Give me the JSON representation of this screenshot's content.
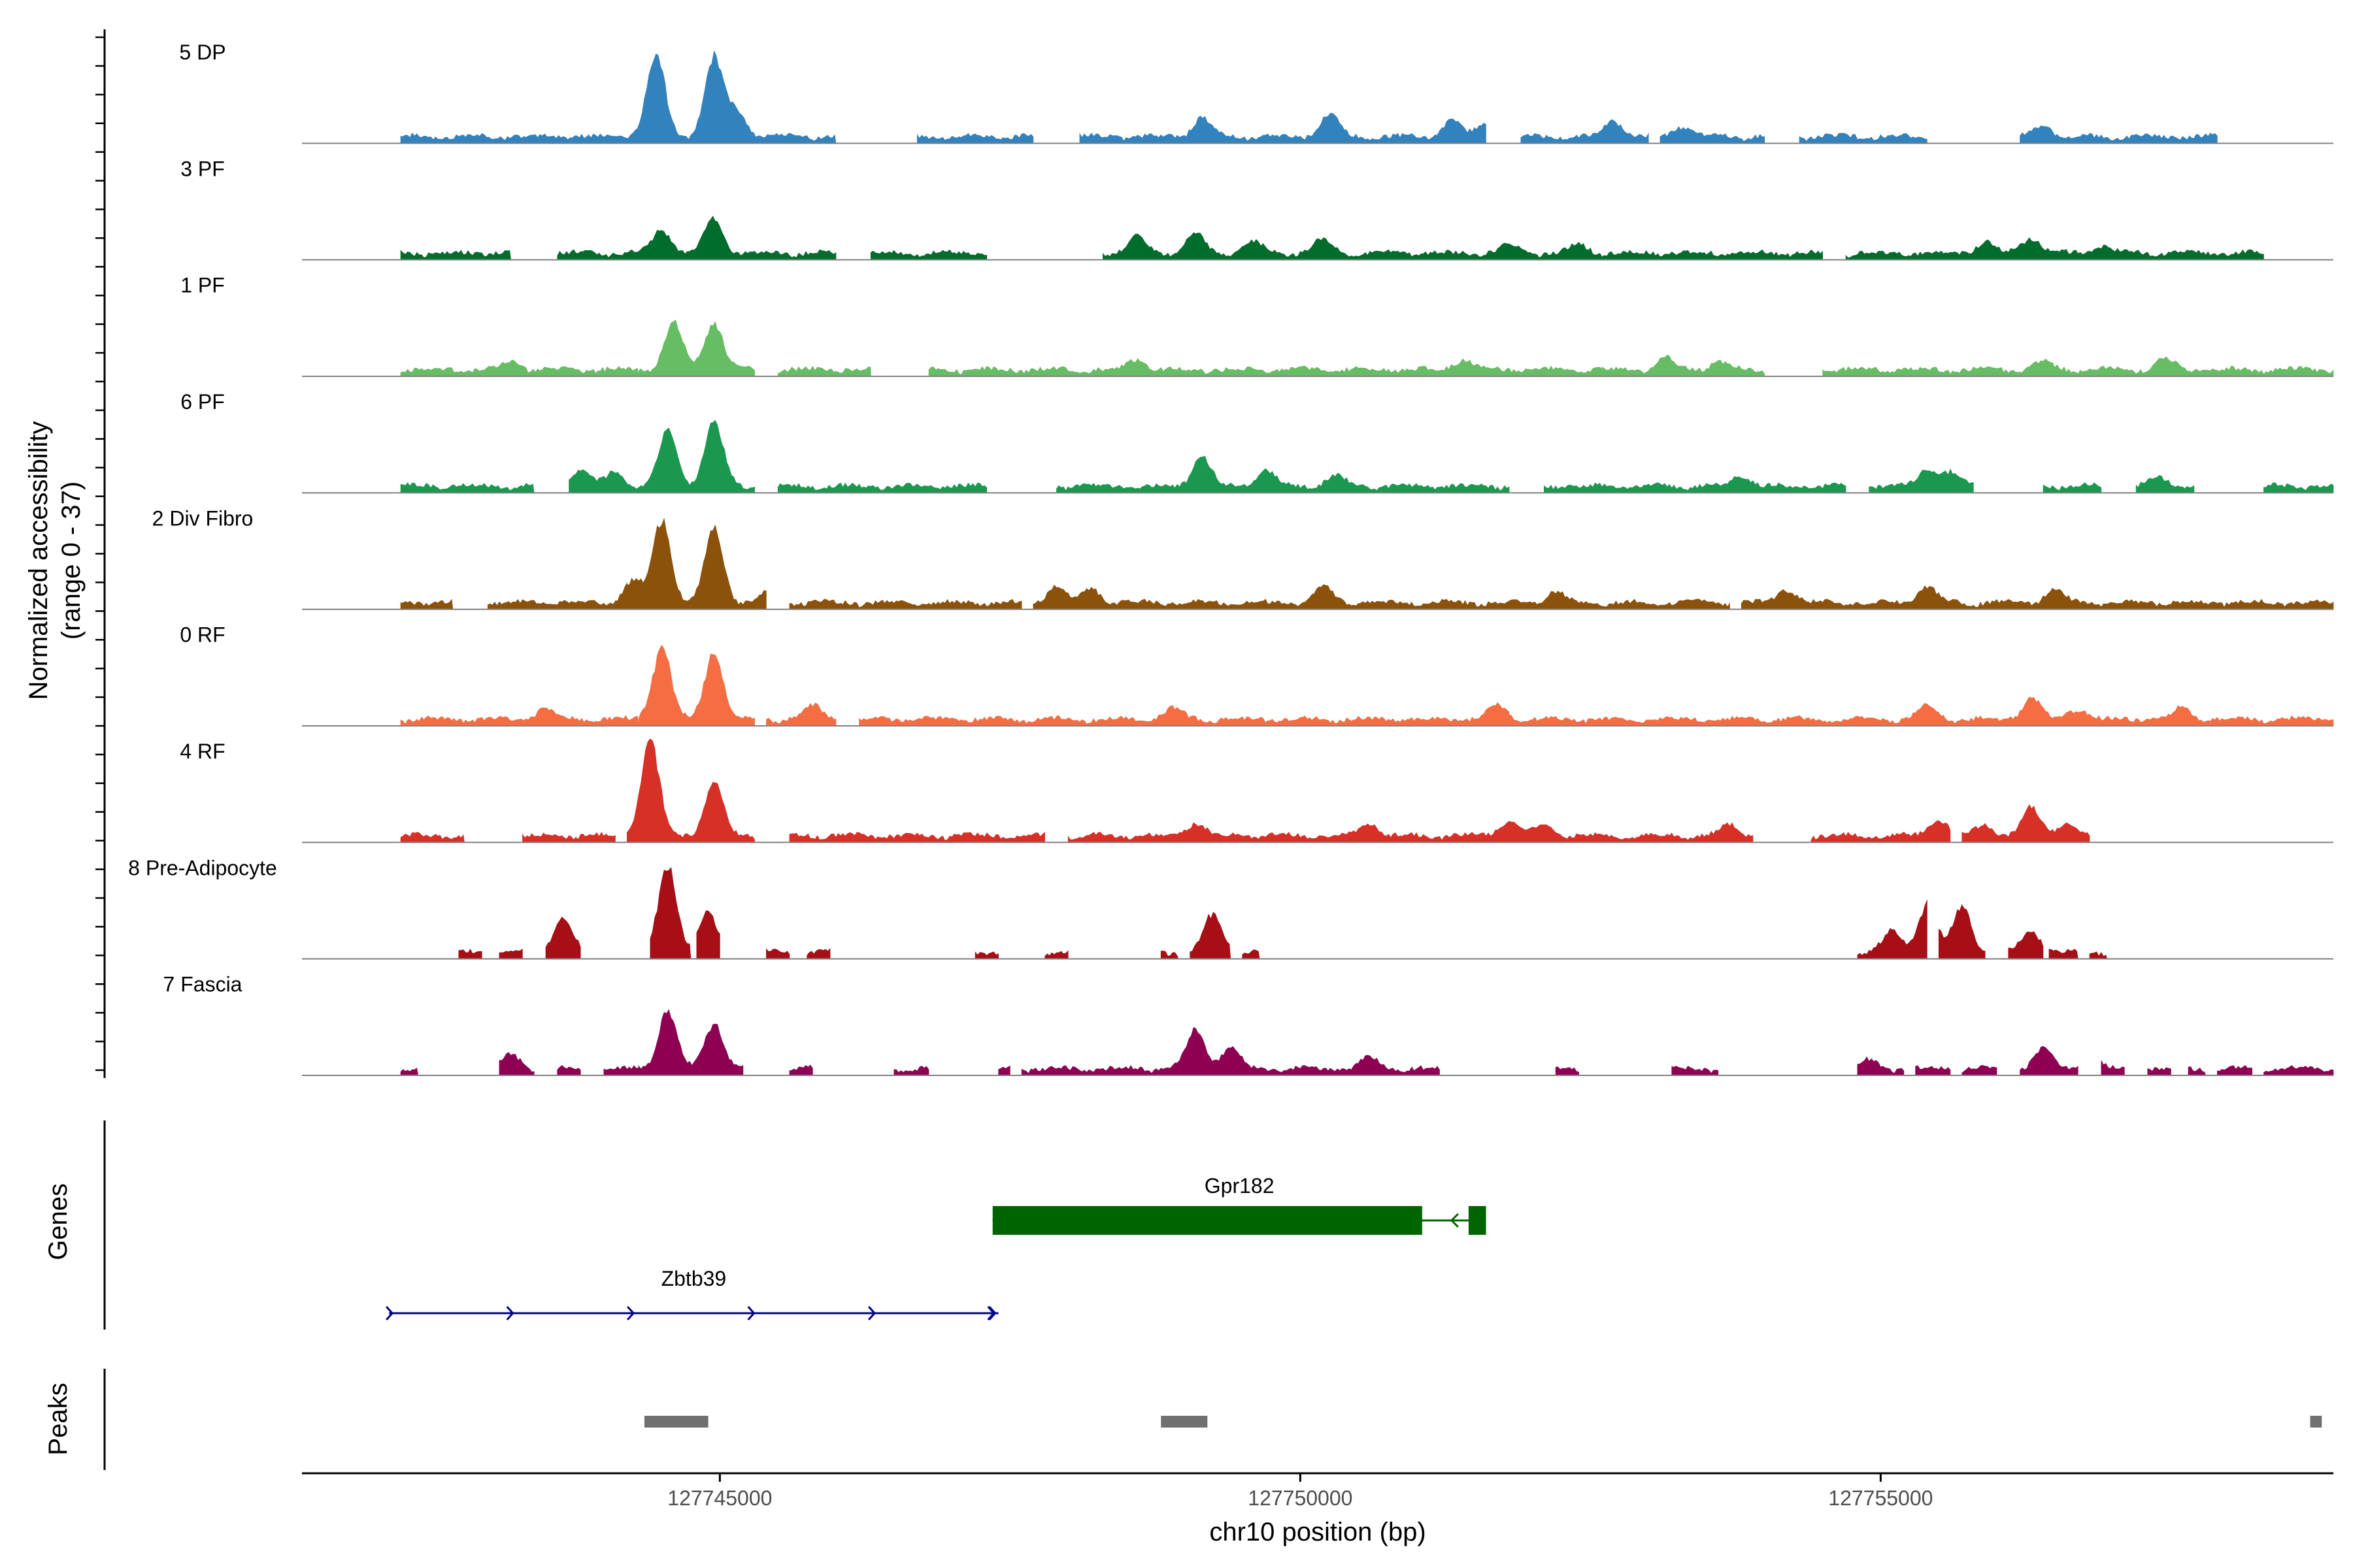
{
  "chart_data": {
    "type": "area",
    "title": "",
    "ylabel": "Normalized accessibility",
    "ylabel_range": "(range 0 - 37)",
    "y_range": [
      0,
      37
    ],
    "xlabel": "chr10 position (bp)",
    "x_range": [
      127741400,
      127758900
    ],
    "xticks": [
      127745000,
      127750000,
      127755000
    ],
    "xtick_labels": [
      "127745000",
      "127750000",
      "127755000"
    ],
    "track_labels": {
      "genes": "Genes",
      "peaks": "Peaks"
    },
    "series": [
      {
        "name": "5 DP",
        "color": "#3182bd",
        "seed": 1,
        "spans": [
          [
            127742250,
            127746000
          ],
          [
            127746700,
            127747700
          ],
          [
            127748100,
            127751600
          ],
          [
            127751900,
            127753000
          ],
          [
            127753100,
            127754000
          ],
          [
            127754300,
            127755400
          ],
          [
            127756200,
            127757900
          ]
        ],
        "peaks": [
          [
            127744450,
            30
          ],
          [
            127744950,
            29
          ],
          [
            127745150,
            9
          ],
          [
            127747900,
            5
          ],
          [
            127749150,
            7
          ],
          [
            127750250,
            8
          ],
          [
            127751300,
            6
          ],
          [
            127751600,
            5
          ],
          [
            127752700,
            6
          ],
          [
            127753300,
            4
          ],
          [
            127756400,
            4
          ]
        ]
      },
      {
        "name": "3 PF",
        "color": "#006d2c",
        "seed": 2,
        "spans": [
          [
            127742250,
            127743200
          ],
          [
            127743600,
            127746000
          ],
          [
            127746300,
            127747300
          ],
          [
            127748300,
            127754500
          ],
          [
            127754700,
            127758300
          ]
        ],
        "peaks": [
          [
            127744500,
            9
          ],
          [
            127744950,
            13
          ],
          [
            127748600,
            6
          ],
          [
            127749100,
            7
          ],
          [
            127749600,
            4
          ],
          [
            127750200,
            5
          ],
          [
            127751800,
            3
          ],
          [
            127752400,
            3
          ],
          [
            127755900,
            4
          ],
          [
            127756300,
            6
          ],
          [
            127756900,
            3
          ]
        ]
      },
      {
        "name": "1 PF",
        "color": "#66bd63",
        "seed": 3,
        "spans": [
          [
            127742250,
            127744300
          ],
          [
            127744300,
            127745300
          ],
          [
            127745500,
            127746300
          ],
          [
            127746800,
            127752600
          ],
          [
            127752600,
            127754000
          ],
          [
            127754500,
            127758900
          ]
        ],
        "peaks": [
          [
            127744600,
            17
          ],
          [
            127744950,
            18
          ],
          [
            127743200,
            3
          ],
          [
            127748600,
            4
          ],
          [
            127751400,
            4
          ],
          [
            127753150,
            4
          ],
          [
            127753600,
            3
          ],
          [
            127756400,
            3
          ],
          [
            127757450,
            4
          ]
        ]
      },
      {
        "name": "6 PF",
        "color": "#1a9850",
        "seed": 4,
        "spans": [
          [
            127742250,
            127743400
          ],
          [
            127743700,
            127744200
          ],
          [
            127744200,
            127745300
          ],
          [
            127745500,
            127747300
          ],
          [
            127747900,
            127751800
          ],
          [
            127752100,
            127754700
          ],
          [
            127754900,
            127755800
          ],
          [
            127756400,
            127756900
          ],
          [
            127757200,
            127757700
          ],
          [
            127758300,
            127758900
          ]
        ],
        "peaks": [
          [
            127744550,
            20
          ],
          [
            127744950,
            24
          ],
          [
            127744100,
            5
          ],
          [
            127743800,
            6
          ],
          [
            127749150,
            11
          ],
          [
            127749700,
            6
          ],
          [
            127750300,
            4
          ],
          [
            127755400,
            6
          ],
          [
            127755600,
            5
          ],
          [
            127753800,
            4
          ],
          [
            127757400,
            3
          ]
        ]
      },
      {
        "name": "2 Div Fibro",
        "color": "#8c510a",
        "seed": 5,
        "spans": [
          [
            127742250,
            127742700
          ],
          [
            127743000,
            127744200
          ],
          [
            127744200,
            127745400
          ],
          [
            127745600,
            127747600
          ],
          [
            127747700,
            127753700
          ],
          [
            127753800,
            127758900
          ]
        ],
        "peaks": [
          [
            127744500,
            30
          ],
          [
            127744950,
            27
          ],
          [
            127744250,
            8
          ],
          [
            127745450,
            5
          ],
          [
            127747900,
            6
          ],
          [
            127748200,
            5
          ],
          [
            127750200,
            6
          ],
          [
            127752200,
            4
          ],
          [
            127754200,
            5
          ],
          [
            127755400,
            6
          ],
          [
            127756500,
            5
          ]
        ]
      },
      {
        "name": "0 RF",
        "color": "#f46d43",
        "seed": 6,
        "spans": [
          [
            127742250,
            127744300
          ],
          [
            127744300,
            127745300
          ],
          [
            127745400,
            127746000
          ],
          [
            127746200,
            127751800
          ],
          [
            127751800,
            127758900
          ]
        ],
        "peaks": [
          [
            127744500,
            27
          ],
          [
            127744950,
            25
          ],
          [
            127743500,
            4
          ],
          [
            127745800,
            5
          ],
          [
            127748900,
            4
          ],
          [
            127751700,
            5
          ],
          [
            127755400,
            5
          ],
          [
            127756300,
            8
          ],
          [
            127756700,
            4
          ],
          [
            127757600,
            4
          ]
        ]
      },
      {
        "name": "4 RF",
        "color": "#d73027",
        "seed": 7,
        "spans": [
          [
            127742250,
            127742800
          ],
          [
            127743300,
            127744100
          ],
          [
            127744200,
            127745300
          ],
          [
            127745600,
            127747800
          ],
          [
            127748000,
            127753900
          ],
          [
            127754400,
            127755600
          ],
          [
            127755700,
            127756800
          ]
        ],
        "peaks": [
          [
            127744400,
            35
          ],
          [
            127744950,
            20
          ],
          [
            127749100,
            5
          ],
          [
            127750600,
            5
          ],
          [
            127751800,
            6
          ],
          [
            127752100,
            4
          ],
          [
            127753700,
            4
          ],
          [
            127755500,
            6
          ],
          [
            127755900,
            4
          ],
          [
            127756300,
            10
          ],
          [
            127756600,
            5
          ]
        ]
      },
      {
        "name": "8 Pre-Adipocyte",
        "color": "#a50f15",
        "seed": 8,
        "spans": [
          [
            127742750,
            127742950
          ],
          [
            127743100,
            127743300
          ],
          [
            127743500,
            127743800
          ],
          [
            127744400,
            127744750
          ],
          [
            127744800,
            127745000
          ],
          [
            127745400,
            127745600
          ],
          [
            127745750,
            127745950
          ],
          [
            127747200,
            127747400
          ],
          [
            127747800,
            127748000
          ],
          [
            127748800,
            127748950
          ],
          [
            127749050,
            127749400
          ],
          [
            127749500,
            127749650
          ],
          [
            127754800,
            127755400
          ],
          [
            127755500,
            127755900
          ],
          [
            127756100,
            127756400
          ],
          [
            127756450,
            127756700
          ],
          [
            127756800,
            127756950
          ]
        ],
        "peaks": [
          [
            127744550,
            32
          ],
          [
            127744900,
            14
          ],
          [
            127743650,
            13
          ],
          [
            127749250,
            14
          ],
          [
            127755400,
            18
          ],
          [
            127755700,
            17
          ],
          [
            127755100,
            8
          ],
          [
            127756300,
            8
          ]
        ]
      },
      {
        "name": "7 Fascia",
        "color": "#8e0152",
        "seed": 9,
        "spans": [
          [
            127742250,
            127742400
          ],
          [
            127743100,
            127743400
          ],
          [
            127743600,
            127743800
          ],
          [
            127744000,
            127744300
          ],
          [
            127744300,
            127745200
          ],
          [
            127745600,
            127745800
          ],
          [
            127746500,
            127746800
          ],
          [
            127747400,
            127747500
          ],
          [
            127747600,
            127751200
          ],
          [
            127752200,
            127752400
          ],
          [
            127753200,
            127753600
          ],
          [
            127754800,
            127755200
          ],
          [
            127755300,
            127755600
          ],
          [
            127755700,
            127756000
          ],
          [
            127756200,
            127756700
          ],
          [
            127756900,
            127757100
          ],
          [
            127757300,
            127757500
          ],
          [
            127757650,
            127757800
          ],
          [
            127757900,
            127758200
          ],
          [
            127758300,
            127758900
          ]
        ],
        "peaks": [
          [
            127744550,
            22
          ],
          [
            127744950,
            17
          ],
          [
            127743200,
            5
          ],
          [
            127749100,
            14
          ],
          [
            127749400,
            8
          ],
          [
            127750600,
            4
          ],
          [
            127754900,
            3
          ],
          [
            127756400,
            7
          ],
          [
            127756800,
            5
          ]
        ]
      }
    ],
    "genes": [
      {
        "name": "Gpr182",
        "strand": "-",
        "color": "#006400",
        "start": 127747350,
        "end": 127751600,
        "exons": [
          [
            127747350,
            127751050
          ],
          [
            127751450,
            127751600
          ]
        ]
      },
      {
        "name": "Zbtb39",
        "strand": "+",
        "color": "#00008b",
        "start": 127742150,
        "end": 127747400,
        "exons": []
      }
    ],
    "peaks_track": [
      [
        127744350,
        127744900
      ],
      [
        127748800,
        127749200
      ],
      [
        127758700,
        127758800
      ]
    ]
  }
}
